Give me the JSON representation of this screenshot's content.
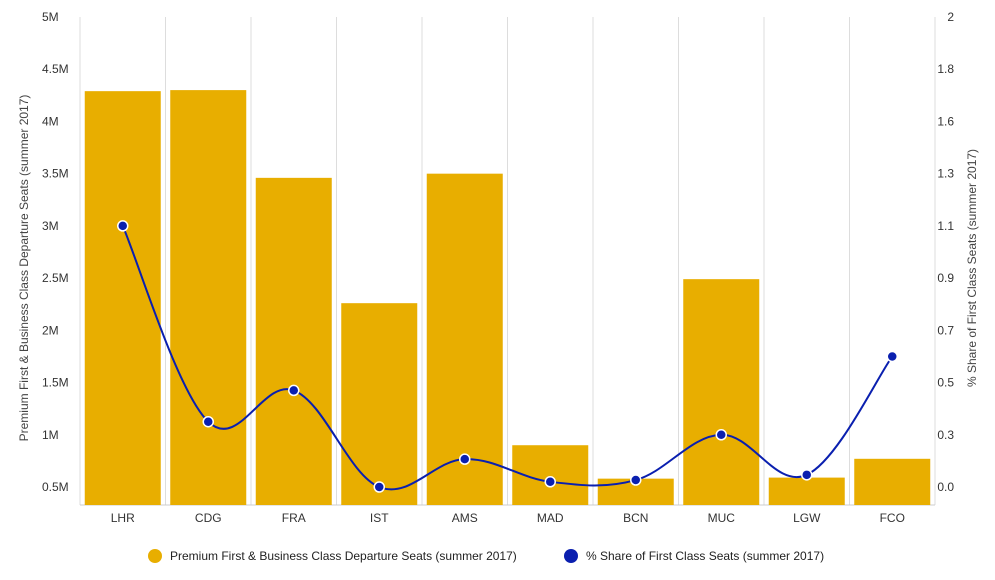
{
  "chart_data": {
    "type": "bar",
    "categories": [
      "LHR",
      "CDG",
      "FRA",
      "IST",
      "AMS",
      "MAD",
      "BCN",
      "MUC",
      "LGW",
      "FCO"
    ],
    "series": [
      {
        "name": "Premium First & Business Class Departure Seats (summer 2017)",
        "type": "bar",
        "axis": "left",
        "color": "#E8AE00",
        "values": [
          4290000,
          4300000,
          3460000,
          2260000,
          3500000,
          900000,
          580000,
          2490000,
          590000,
          770000
        ]
      },
      {
        "name": "% Share of First Class Seats (summer 2017)",
        "type": "line",
        "axis": "right",
        "color": "#0A1FAF",
        "values": [
          1.1,
          0.35,
          0.47,
          0.0,
          0.16,
          0.03,
          0.04,
          0.3,
          0.07,
          0.6
        ]
      }
    ],
    "y_left": {
      "label": "Premium First & Business Class Departure Seats (summer 2017)",
      "min": 500000,
      "max": 5000000,
      "ticks": [
        {
          "value": 500000,
          "label": "0.5M"
        },
        {
          "value": 1000000,
          "label": "1M"
        },
        {
          "value": 1500000,
          "label": "1.5M"
        },
        {
          "value": 2000000,
          "label": "2M"
        },
        {
          "value": 2500000,
          "label": "2.5M"
        },
        {
          "value": 3000000,
          "label": "3M"
        },
        {
          "value": 3500000,
          "label": "3.5M"
        },
        {
          "value": 4000000,
          "label": "4M"
        },
        {
          "value": 4500000,
          "label": "4.5M"
        },
        {
          "value": 5000000,
          "label": "5M"
        }
      ]
    },
    "y_right": {
      "label": "% Share of First Class Seats (summer 2017)",
      "ticks": [
        {
          "value": 0.0,
          "label": "0.0"
        },
        {
          "value": 0.3,
          "label": "0.3"
        },
        {
          "value": 0.5,
          "label": "0.5"
        },
        {
          "value": 0.7,
          "label": "0.7"
        },
        {
          "value": 0.9,
          "label": "0.9"
        },
        {
          "value": 1.1,
          "label": "1.1"
        },
        {
          "value": 1.3,
          "label": "1.3"
        },
        {
          "value": 1.6,
          "label": "1.6"
        },
        {
          "value": 1.8,
          "label": "1.8"
        },
        {
          "value": 2.0,
          "label": "2"
        }
      ]
    },
    "grid": "vertical",
    "legend_position": "bottom"
  }
}
